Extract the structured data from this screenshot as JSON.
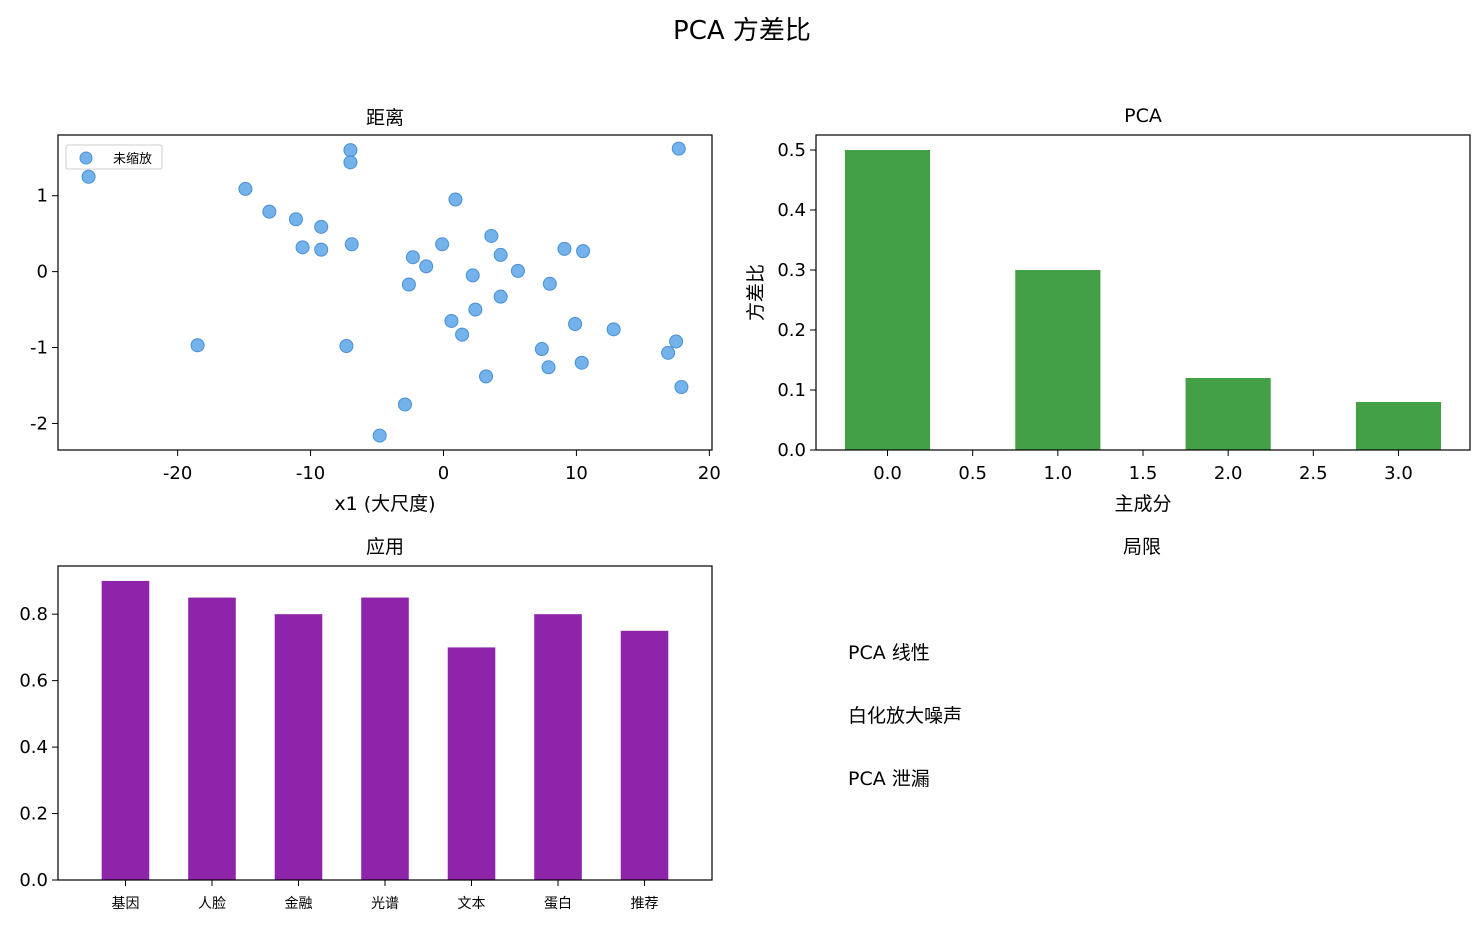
{
  "figure_title": "PCA 方差比",
  "chart_data": [
    {
      "type": "scatter",
      "title": "距离",
      "xlabel": "x1 (大尺度)",
      "ylabel": "",
      "xlim": [
        -29,
        20.2
      ],
      "ylim": [
        -2.35,
        1.8
      ],
      "xticks": [
        -20,
        -10,
        0,
        10,
        20
      ],
      "xtick_labels": [
        "-20",
        "-10",
        "0",
        "10",
        "20"
      ],
      "yticks": [
        -2,
        -1,
        0,
        1
      ],
      "ytick_labels": [
        "-2",
        "-1",
        "0",
        "1"
      ],
      "grid": false,
      "legend": "top-left",
      "color": "#5aa5e8",
      "series": [
        {
          "name": "未缩放",
          "points": [
            [
              -26.7,
              1.25
            ],
            [
              -14.9,
              1.09
            ],
            [
              -13.1,
              0.79
            ],
            [
              -11.1,
              0.69
            ],
            [
              -10.6,
              0.32
            ],
            [
              -9.2,
              0.59
            ],
            [
              -9.2,
              0.29
            ],
            [
              -7.0,
              1.6
            ],
            [
              -7.0,
              1.44
            ],
            [
              -6.9,
              0.36
            ],
            [
              -7.3,
              -0.98
            ],
            [
              -18.5,
              -0.97
            ],
            [
              -4.8,
              -2.16
            ],
            [
              -2.9,
              -1.75
            ],
            [
              -2.6,
              -0.17
            ],
            [
              -2.3,
              0.19
            ],
            [
              -1.3,
              0.07
            ],
            [
              -0.1,
              0.36
            ],
            [
              0.9,
              0.95
            ],
            [
              2.2,
              -0.05
            ],
            [
              0.6,
              -0.65
            ],
            [
              1.4,
              -0.83
            ],
            [
              2.4,
              -0.5
            ],
            [
              3.6,
              0.47
            ],
            [
              4.3,
              0.22
            ],
            [
              4.3,
              -0.33
            ],
            [
              3.2,
              -1.38
            ],
            [
              5.6,
              0.01
            ],
            [
              7.4,
              -1.02
            ],
            [
              7.9,
              -1.26
            ],
            [
              8.0,
              -0.16
            ],
            [
              9.1,
              0.3
            ],
            [
              9.9,
              -0.69
            ],
            [
              10.5,
              0.27
            ],
            [
              10.4,
              -1.2
            ],
            [
              12.8,
              -0.76
            ],
            [
              16.9,
              -1.07
            ],
            [
              17.5,
              -0.92
            ],
            [
              17.7,
              1.62
            ],
            [
              17.9,
              -1.52
            ]
          ]
        }
      ]
    },
    {
      "type": "bar",
      "title": "PCA",
      "xlabel": "主成分",
      "ylabel": "方差比",
      "x": [
        0,
        1,
        2,
        3
      ],
      "values": [
        0.5,
        0.3,
        0.12,
        0.08
      ],
      "xlim": [
        -0.42,
        3.42
      ],
      "ylim": [
        0,
        0.525
      ],
      "xticks": [
        0,
        0.5,
        1,
        1.5,
        2,
        2.5,
        3
      ],
      "xtick_labels": [
        "0.0",
        "0.5",
        "1.0",
        "1.5",
        "2.0",
        "2.5",
        "3.0"
      ],
      "yticks": [
        0,
        0.1,
        0.2,
        0.3,
        0.4,
        0.5
      ],
      "ytick_labels": [
        "0.0",
        "0.1",
        "0.2",
        "0.3",
        "0.4",
        "0.5"
      ],
      "bar_width": 0.5,
      "color": "#43a047",
      "grid": false
    },
    {
      "type": "bar",
      "title": "应用",
      "xlabel": "",
      "ylabel": "",
      "categories": [
        "基因",
        "人脸",
        "金融",
        "光谱",
        "文本",
        "蛋白",
        "推荐"
      ],
      "values": [
        0.9,
        0.85,
        0.8,
        0.85,
        0.7,
        0.8,
        0.75
      ],
      "ylim": [
        0,
        0.945
      ],
      "yticks": [
        0,
        0.2,
        0.4,
        0.6,
        0.8
      ],
      "ytick_labels": [
        "0.0",
        "0.2",
        "0.4",
        "0.6",
        "0.8"
      ],
      "bar_width": 0.55,
      "color": "#8e24aa",
      "grid": false
    }
  ],
  "limitations": {
    "title": "局限",
    "items": [
      "PCA 线性",
      "白化放大噪声",
      "PCA 泄漏"
    ]
  }
}
